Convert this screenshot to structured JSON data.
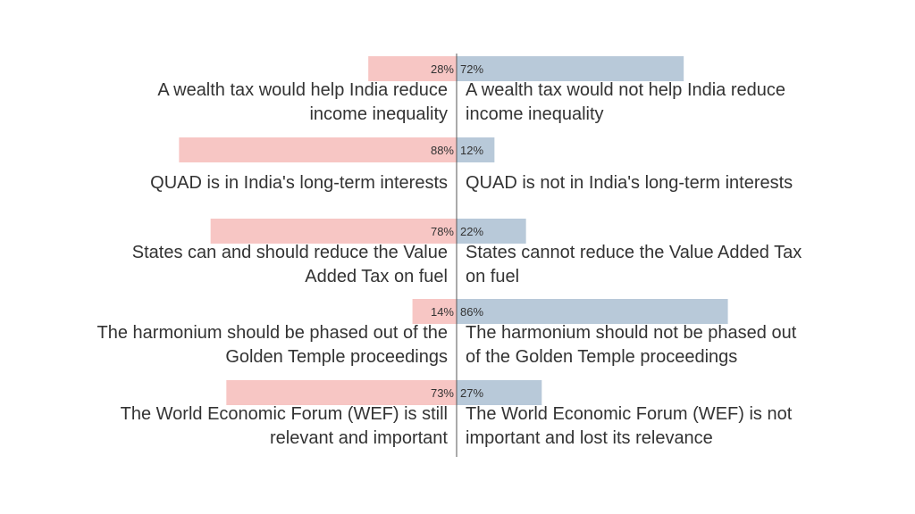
{
  "chart_data": {
    "type": "bar",
    "title": "",
    "xlim": [
      -100,
      100
    ],
    "colors": {
      "left": "#f7c6c4",
      "right": "#b8c9d9",
      "axis": "#555555"
    },
    "series": [
      {
        "name": "",
        "side": "left"
      },
      {
        "name": "",
        "side": "right"
      }
    ],
    "rows": [
      {
        "left_value": 28,
        "left_label": "28%",
        "right_value": 72,
        "right_label": "72%",
        "left_text": [
          "A wealth tax would help India reduce",
          "income inequality"
        ],
        "right_text": [
          "A wealth tax would not help India reduce",
          "income inequality"
        ]
      },
      {
        "left_value": 88,
        "left_label": "88%",
        "right_value": 12,
        "right_label": "12%",
        "left_text": [
          "QUAD is in India's long-term interests"
        ],
        "right_text": [
          "QUAD is not in India's long-term interests"
        ]
      },
      {
        "left_value": 78,
        "left_label": "78%",
        "right_value": 22,
        "right_label": "22%",
        "left_text": [
          "States can and should reduce the Value",
          "Added Tax on fuel"
        ],
        "right_text": [
          "States cannot reduce the Value Added Tax",
          "on fuel"
        ]
      },
      {
        "left_value": 14,
        "left_label": "14%",
        "right_value": 86,
        "right_label": "86%",
        "left_text": [
          "The harmonium should be phased out of the",
          "Golden Temple proceedings"
        ],
        "right_text": [
          "The harmonium should not be phased out",
          "of the Golden Temple proceedings"
        ]
      },
      {
        "left_value": 73,
        "left_label": "73%",
        "right_value": 27,
        "right_label": "27%",
        "left_text": [
          "The World Economic Forum (WEF) is still",
          "relevant and important"
        ],
        "right_text": [
          "The World Economic Forum (WEF) is not",
          "important and lost its relevance"
        ]
      }
    ]
  }
}
